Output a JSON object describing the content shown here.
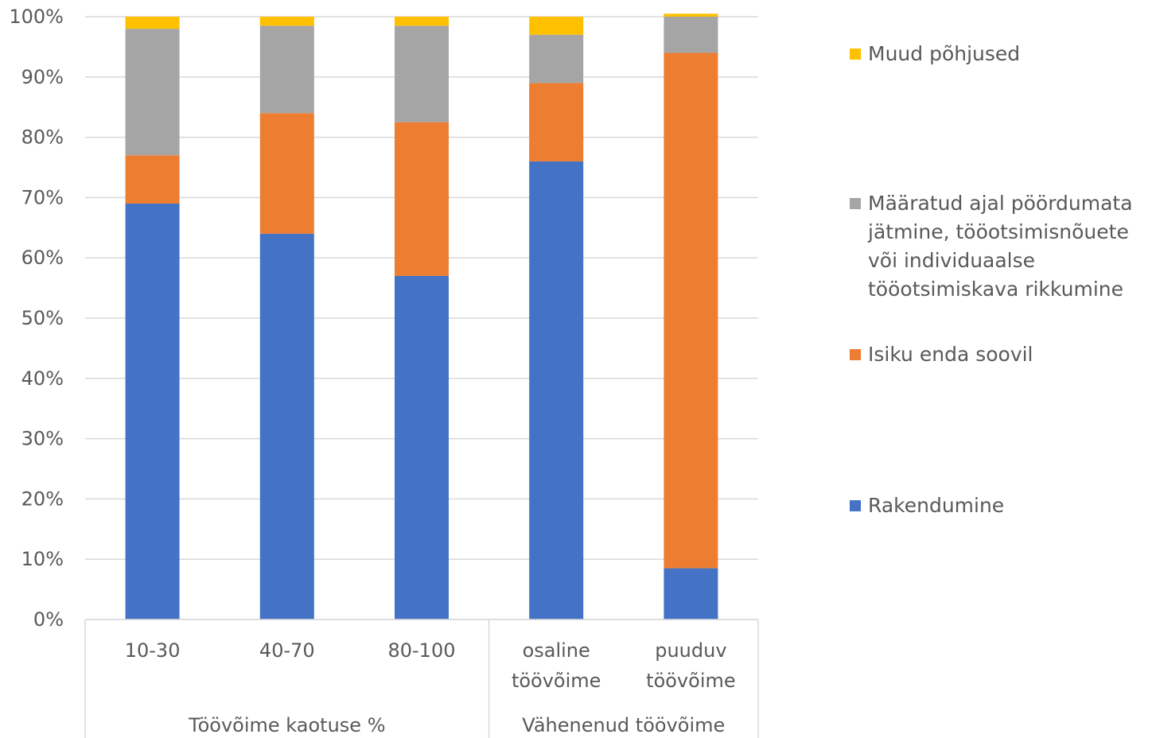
{
  "chart_data": {
    "type": "bar",
    "stacked": true,
    "percent": true,
    "categories": [
      "10-30",
      "40-70",
      "80-100",
      "osaline\ntöövõime",
      "puuduv\ntöövõime"
    ],
    "category_groups": [
      {
        "label": "Töövõime kaotuse %",
        "count": 3
      },
      {
        "label": "Vähenenud töövõime",
        "count": 2
      }
    ],
    "series": [
      {
        "name": "Rakendumine",
        "color": "#4472C4",
        "values": [
          69,
          64,
          57,
          76,
          8.5
        ]
      },
      {
        "name": "Isiku enda soovil",
        "color": "#ED7D31",
        "values": [
          8,
          20,
          25.5,
          13,
          85.5
        ]
      },
      {
        "name": "Määratud ajal pöördumata jätmine, tööotsimisnõuete või individuaalse tööotsimiskava rikkumine",
        "color": "#A5A5A5",
        "values": [
          21,
          14.5,
          16,
          8,
          6
        ]
      },
      {
        "name": "Muud põhjused",
        "color": "#FFC000",
        "values": [
          2,
          1.5,
          1.5,
          3,
          0.5
        ]
      }
    ],
    "ylim": [
      0,
      100
    ],
    "yticks": [
      "0%",
      "10%",
      "20%",
      "30%",
      "40%",
      "50%",
      "60%",
      "70%",
      "80%",
      "90%",
      "100%"
    ],
    "grid": true,
    "legend_position": "right"
  }
}
